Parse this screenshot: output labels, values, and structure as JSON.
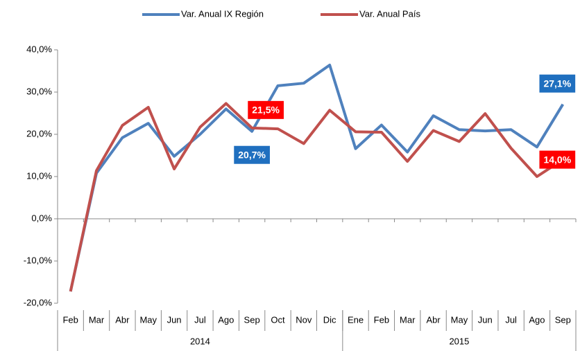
{
  "chart_data": {
    "type": "line",
    "categories": [
      "Feb",
      "Mar",
      "Abr",
      "May",
      "Jun",
      "Jul",
      "Ago",
      "Sep",
      "Oct",
      "Nov",
      "Dic",
      "Ene",
      "Feb",
      "Mar",
      "Abr",
      "May",
      "Jun",
      "Jul",
      "Ago",
      "Sep"
    ],
    "category_groups": [
      {
        "label": "2014",
        "span": 11
      },
      {
        "label": "2015",
        "span": 9
      }
    ],
    "series": [
      {
        "name": "Var. Anual IX Región",
        "color": "#4f81bd",
        "label_color": "#1f6fbf",
        "values": [
          -17.2,
          10.8,
          19.2,
          22.6,
          14.8,
          20.0,
          26.0,
          20.7,
          31.5,
          32.1,
          36.4,
          16.6,
          22.2,
          15.8,
          24.4,
          21.1,
          20.8,
          21.1,
          17.0,
          27.1
        ],
        "value_labels": [
          null,
          null,
          null,
          null,
          null,
          null,
          null,
          "20,7%",
          null,
          null,
          null,
          null,
          null,
          null,
          null,
          null,
          null,
          null,
          null,
          "27,1%"
        ]
      },
      {
        "name": "Var. Anual País",
        "color": "#c0504d",
        "label_color": "#ff0000",
        "values": [
          -17.2,
          11.4,
          22.1,
          26.4,
          11.8,
          21.7,
          27.3,
          21.5,
          21.3,
          17.8,
          25.7,
          20.6,
          20.5,
          13.6,
          20.9,
          18.3,
          24.9,
          16.7,
          10.0,
          14.0
        ],
        "value_labels": [
          null,
          null,
          null,
          null,
          null,
          null,
          null,
          "21,5%",
          null,
          null,
          null,
          null,
          null,
          null,
          null,
          null,
          null,
          null,
          null,
          "14,0%"
        ]
      }
    ],
    "ylim": [
      -20,
      40
    ],
    "yticks": [
      {
        "value": -20,
        "label": "-20,0%"
      },
      {
        "value": -10,
        "label": "-10,0%"
      },
      {
        "value": 0,
        "label": "0,0%"
      },
      {
        "value": 10,
        "label": "10,0%"
      },
      {
        "value": 20,
        "label": "20,0%"
      },
      {
        "value": 30,
        "label": "30,0%"
      },
      {
        "value": 40,
        "label": "40,0%"
      }
    ],
    "legend": "top"
  }
}
